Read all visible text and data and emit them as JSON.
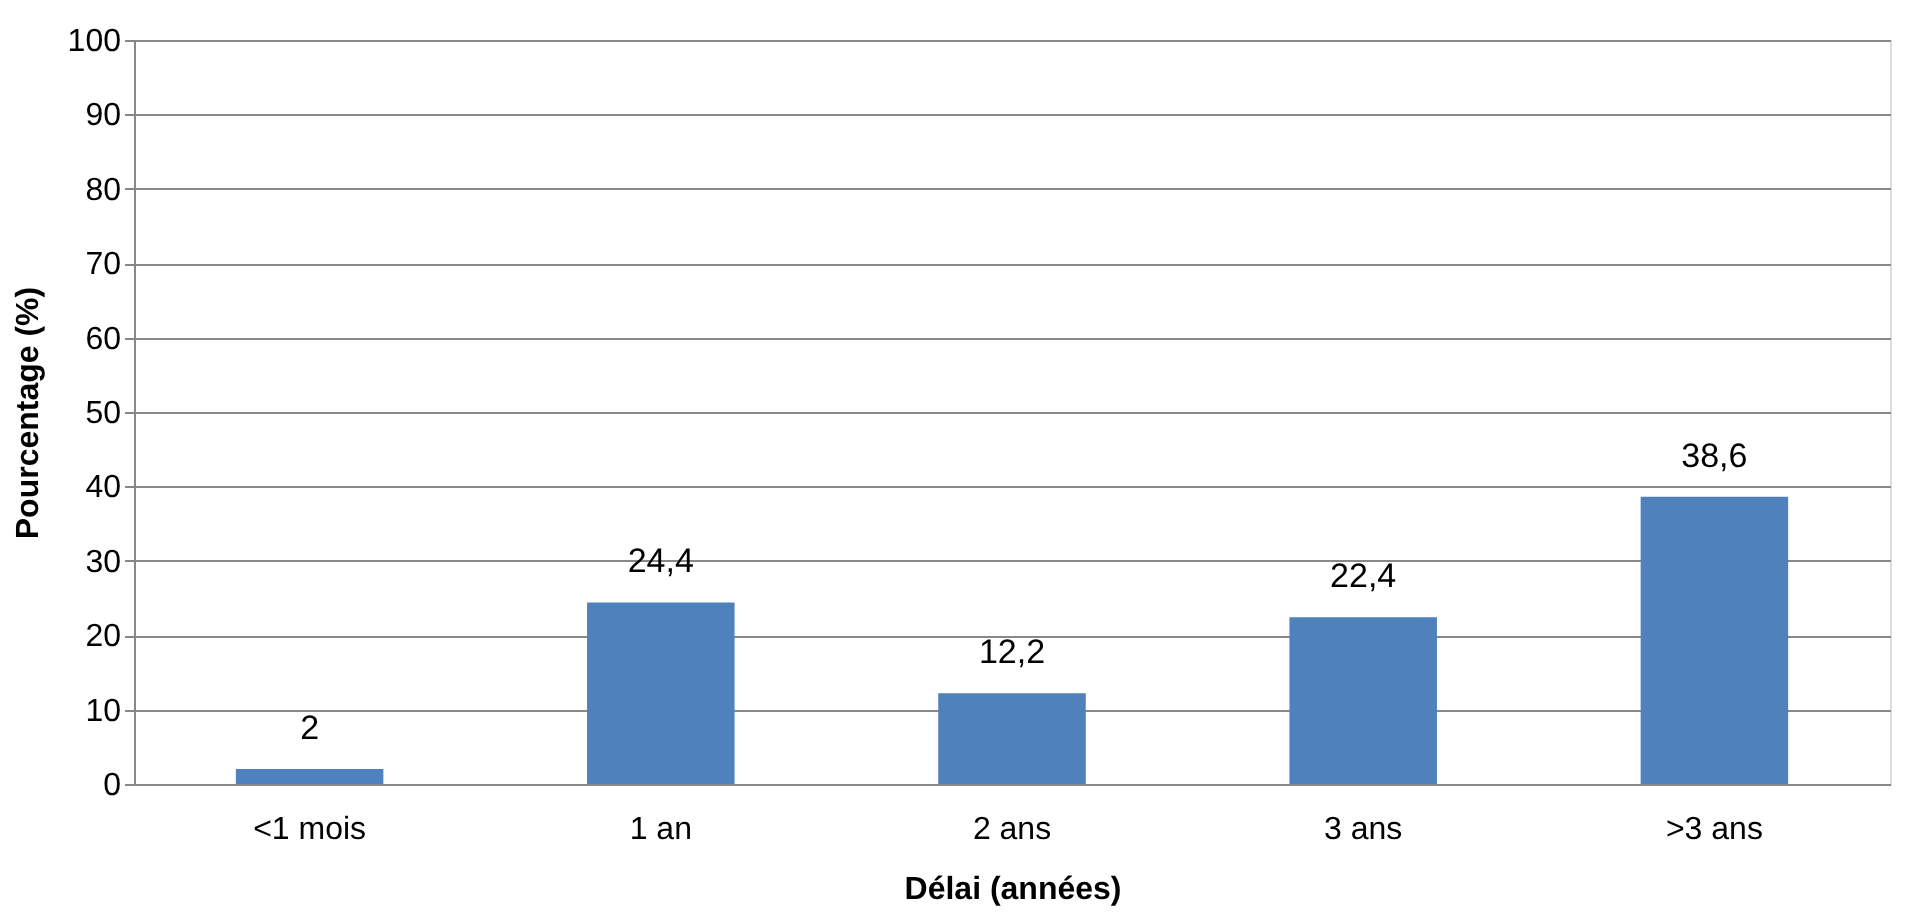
{
  "chart_data": {
    "type": "bar",
    "xlabel": "Délai (années)",
    "ylabel": "Pourcentage (%)",
    "categories": [
      "<1 mois",
      "1 an",
      "2 ans",
      "3 ans",
      ">3 ans"
    ],
    "values": [
      2,
      24.4,
      12.2,
      22.4,
      38.6
    ],
    "value_labels": [
      "2",
      "24,4",
      "12,2",
      "22,4",
      "38,6"
    ],
    "color": "#4f81bd",
    "ylim": [
      0,
      100
    ],
    "yticks": [
      0,
      10,
      20,
      30,
      40,
      50,
      60,
      70,
      80,
      90,
      100
    ],
    "grid": "y"
  }
}
